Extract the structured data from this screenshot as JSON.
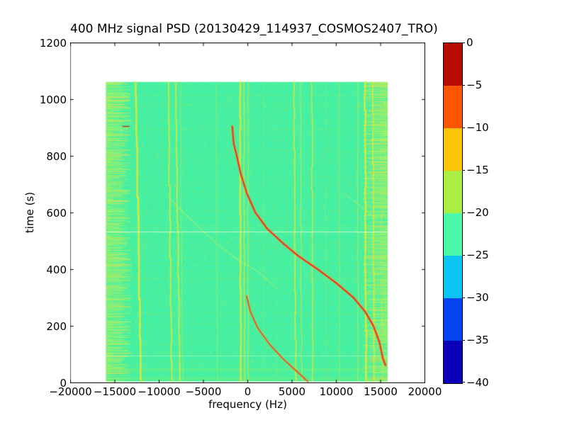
{
  "chart_data": {
    "type": "heatmap",
    "title": "400 MHz signal PSD (20130429_114937_COSMOS2407_TRO)",
    "xlabel": "frequency (Hz)",
    "ylabel": "time (s)",
    "xlim": [
      -20000,
      20000
    ],
    "ylim": [
      0,
      1200
    ],
    "grid": false,
    "xticks": {
      "values": [
        -20000,
        -15000,
        -10000,
        -5000,
        0,
        5000,
        10000,
        15000,
        20000
      ],
      "labels": [
        "−20000",
        "−15000",
        "−10000",
        "−5000",
        "0",
        "5000",
        "10000",
        "15000",
        "20000"
      ]
    },
    "yticks": {
      "values": [
        0,
        200,
        400,
        600,
        800,
        1000,
        1200
      ],
      "labels": [
        "0",
        "200",
        "400",
        "600",
        "800",
        "1000",
        "1200"
      ]
    },
    "colorbar": {
      "position": "right",
      "tick_values": [
        0,
        -5,
        -10,
        -15,
        -20,
        -25,
        -30,
        -35,
        -40
      ],
      "tick_labels": [
        "0",
        "−5",
        "−10",
        "−15",
        "−20",
        "−25",
        "−30",
        "−35",
        "−40"
      ],
      "segment_colors": [
        "#b80b00",
        "#fb5500",
        "#fcc308",
        "#aaee44",
        "#4df9a9",
        "#0ac4f2",
        "#0543f2",
        "#0b00b8"
      ]
    },
    "heatmap": {
      "extent": {
        "freq": [
          -16000,
          15800
        ],
        "time": [
          5,
          1062
        ]
      },
      "background_color": "#45f0a4",
      "background_level_db": -22,
      "noise": {
        "seed": 20130429,
        "row_color": "#aaf14e",
        "row_prob": 0.3,
        "speckles": 5200,
        "speckle_colors": [
          "#aaf14e",
          "#2ee29b",
          "#ffd83c"
        ]
      },
      "bands": [
        {
          "name": "left-noise-band",
          "anchor": "left",
          "freq": [
            -16000,
            -13050
          ],
          "colors": [
            "#b2f25c",
            "#ffd83c"
          ]
        },
        {
          "name": "right-noise-band",
          "anchor": "right",
          "freq": [
            12900,
            15800
          ],
          "colors": [
            "#b2f25c",
            "#ffd83c"
          ]
        }
      ],
      "carrier_color": "#e3e637",
      "carriers": [
        {
          "f0": -12050,
          "f1": -12650,
          "w": 2.4,
          "a": 0.95
        },
        {
          "f0": -8550,
          "f1": -8980,
          "w": 1.8,
          "a": 0.85
        },
        {
          "f0": -7680,
          "f1": -8100,
          "w": 1.8,
          "a": 0.85
        },
        {
          "f0": -7350,
          "f1": -7600,
          "w": 1.0,
          "a": 0.45
        },
        {
          "f0": -3450,
          "f1": -3550,
          "w": 1.0,
          "a": 0.4
        },
        {
          "f0": -790,
          "f1": -850,
          "w": 2.2,
          "a": 0.95
        },
        {
          "f0": -350,
          "f1": -400,
          "w": 1.4,
          "a": 0.75
        },
        {
          "f0": 80,
          "f1": 30,
          "w": 1.2,
          "a": 0.6
        },
        {
          "f0": 1900,
          "f1": 1850,
          "w": 0.8,
          "a": 0.3
        },
        {
          "f0": 3250,
          "f1": 3200,
          "w": 0.8,
          "a": 0.25
        },
        {
          "f0": 5420,
          "f1": 5230,
          "w": 1.8,
          "a": 0.8
        },
        {
          "f0": 6060,
          "f1": 5980,
          "w": 1.4,
          "a": 0.55
        },
        {
          "f0": 7350,
          "f1": 7240,
          "w": 1.6,
          "a": 0.75
        },
        {
          "f0": 8800,
          "f1": 8800,
          "w": 0.8,
          "a": 0.3
        },
        {
          "f0": 10400,
          "f1": 10290,
          "w": 1.0,
          "a": 0.5
        },
        {
          "f0": 12460,
          "f1": 12390,
          "w": 1.2,
          "a": 0.6
        },
        {
          "f0": 13350,
          "f1": 13240,
          "w": 2.4,
          "a": 0.95
        },
        {
          "f0": 14250,
          "f1": 14130,
          "w": 1.8,
          "a": 0.8
        },
        {
          "f0": 15150,
          "f1": 15080,
          "w": 1.0,
          "a": 0.5
        }
      ],
      "horizontal_lines": [
        {
          "time": 533,
          "color": "#dcf9cf",
          "alpha": 0.9
        },
        {
          "time": 97,
          "color": "#dcf9cf",
          "alpha": 0.45
        }
      ],
      "faint_traces": [
        {
          "name": "crossing-trace",
          "color": "#c9ec5f",
          "alpha": 0.6,
          "width": 1.1,
          "points": [
            [
              -8950,
              655
            ],
            [
              -7200,
              600
            ],
            [
              -5200,
              540
            ],
            [
              -3000,
              478
            ],
            [
              -800,
              428
            ],
            [
              1200,
              392
            ],
            [
              3300,
              332
            ]
          ]
        },
        {
          "name": "upper-right-trace",
          "color": "#c9ec5f",
          "alpha": 0.5,
          "width": 1.1,
          "points": [
            [
              10900,
              667
            ],
            [
              12500,
              630
            ],
            [
              14000,
              592
            ],
            [
              15150,
              550
            ]
          ]
        }
      ],
      "doppler_curves": [
        {
          "name": "main-doppler-track",
          "color": "#e2321a",
          "halo": "#ff8c2e",
          "halo_alpha": 0.6,
          "width": 1.8,
          "points": [
            [
              -1740,
              905
            ],
            [
              -1580,
              844
            ],
            [
              -1300,
              810
            ],
            [
              -770,
              736
            ],
            [
              -100,
              669
            ],
            [
              850,
              602
            ],
            [
              2200,
              544
            ],
            [
              4080,
              490
            ],
            [
              5700,
              448
            ],
            [
              7850,
              402
            ],
            [
              10010,
              352
            ],
            [
              11900,
              302
            ],
            [
              13240,
              252
            ],
            [
              14180,
              202
            ],
            [
              14860,
              144
            ],
            [
              15260,
              86
            ],
            [
              15560,
              62
            ]
          ]
        },
        {
          "name": "secondary-doppler-track",
          "color": "#e54a1e",
          "halo": "#ffa02e",
          "halo_alpha": 0.45,
          "width": 1.5,
          "points": [
            [
              -120,
              306
            ],
            [
              300,
              252
            ],
            [
              1120,
              194
            ],
            [
              2460,
              136
            ],
            [
              4080,
              82
            ],
            [
              5700,
              36
            ],
            [
              6780,
              5
            ]
          ]
        }
      ],
      "artifacts": [
        {
          "type": "dash",
          "freq": [
            -14100,
            -13400
          ],
          "time": 905,
          "color": "#e2321a"
        }
      ]
    }
  }
}
